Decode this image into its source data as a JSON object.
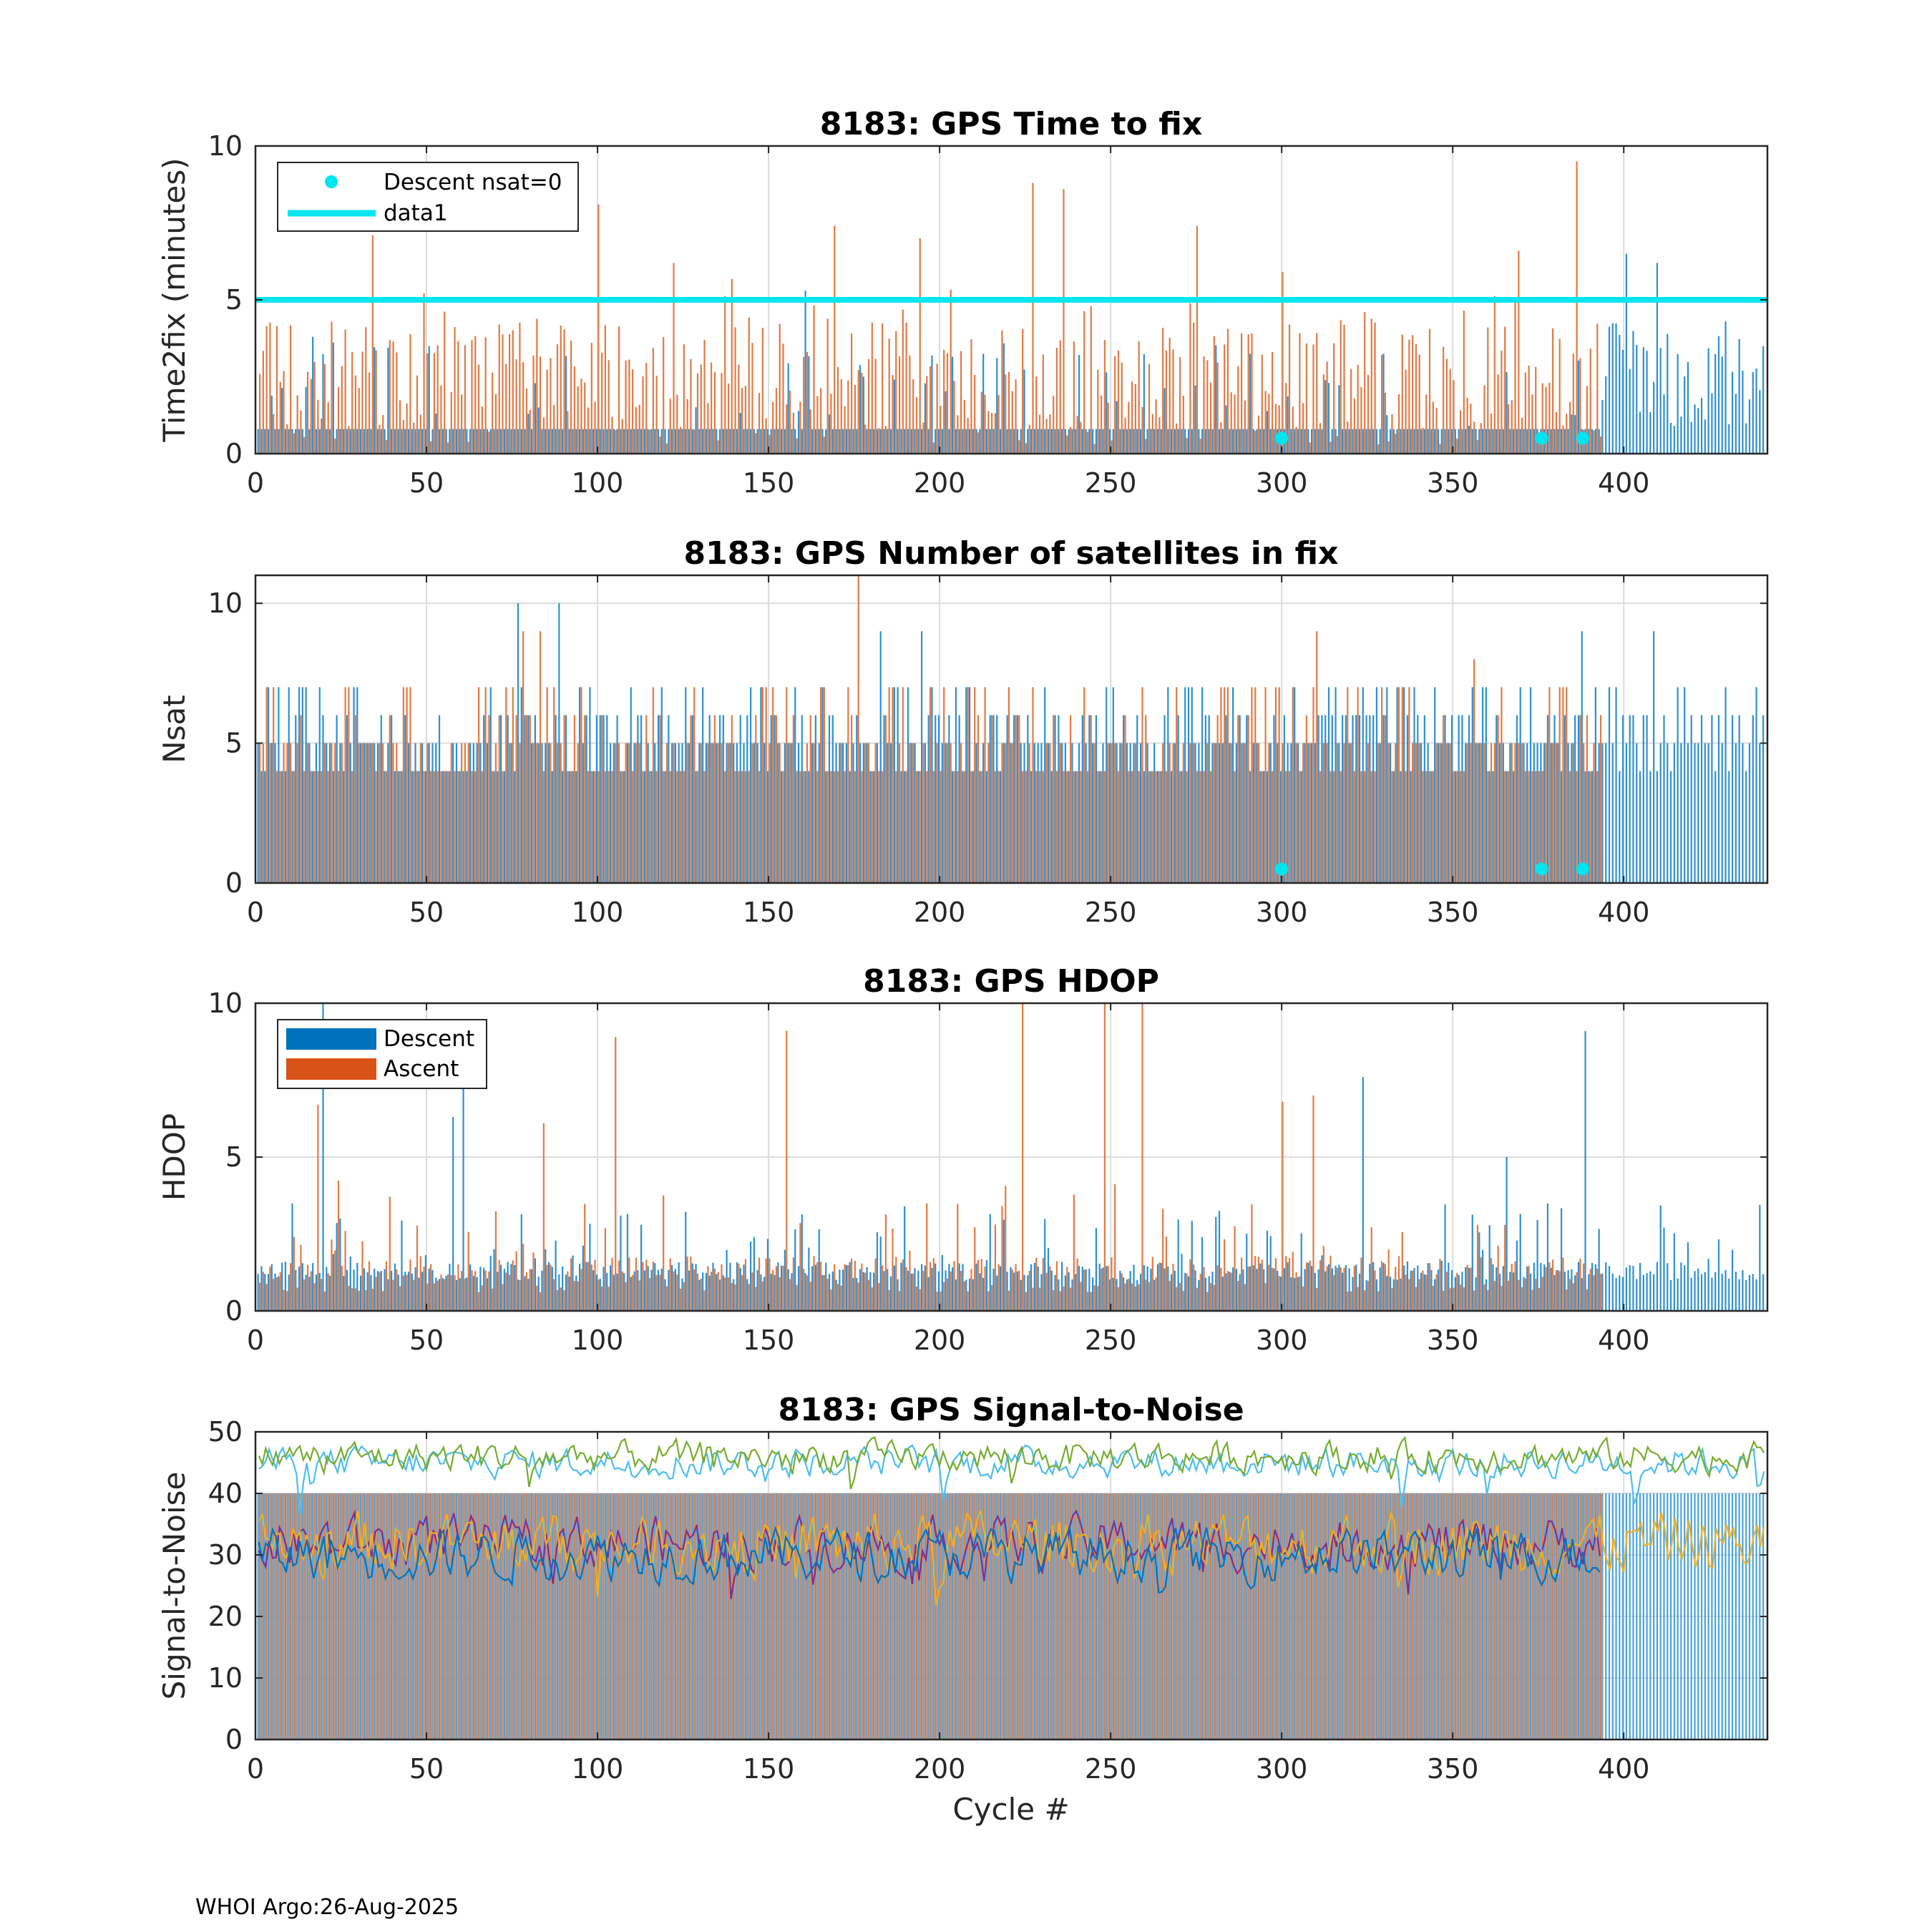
{
  "footer": "WHOI Argo:26-Aug-2025",
  "colors": {
    "descent": "#0072bd",
    "ascent": "#d95319",
    "threshold": "#00e5ee",
    "nsat0": "#00e5ee",
    "snr_series": [
      "#4dbeee",
      "#77ac30",
      "#7e2f8e",
      "#edb120",
      "#0072bd"
    ]
  },
  "chart_data": [
    {
      "id": "ttf",
      "type": "bar",
      "title": "8183: GPS Time to fix",
      "xlabel": "",
      "ylabel": "Time2fix (minutes)",
      "xlim": [
        0,
        442
      ],
      "ylim": [
        0,
        10
      ],
      "xticks": [
        0,
        50,
        100,
        150,
        200,
        250,
        300,
        350,
        400
      ],
      "yticks": [
        0,
        5,
        10
      ],
      "grid": true,
      "legend": {
        "position": "top-left",
        "entries": [
          "Descent nsat=0",
          "data1"
        ]
      },
      "threshold": {
        "name": "data1",
        "value": 5
      },
      "nsat0_points": {
        "name": "Descent nsat=0",
        "x": [
          300,
          376,
          388
        ],
        "y": [
          0.5,
          0.5,
          0.5
        ]
      },
      "ascent_peaks": [
        [
          34,
          7.1
        ],
        [
          100,
          8.1
        ],
        [
          122,
          6.2
        ],
        [
          169,
          7.4
        ],
        [
          194,
          7.0
        ],
        [
          227,
          8.8
        ],
        [
          236,
          8.6
        ],
        [
          275,
          7.4
        ],
        [
          300,
          5.9
        ],
        [
          369,
          6.6
        ],
        [
          386,
          9.5
        ]
      ],
      "descent_peaks": [
        [
          161,
          5.3
        ],
        [
          401,
          6.5
        ],
        [
          410,
          6.2
        ],
        [
          430,
          4.3
        ]
      ],
      "series": [
        {
          "name": "Descent",
          "x_range": [
            1,
            441
          ],
          "typical": 0.8,
          "spread": 3.0
        },
        {
          "name": "Ascent",
          "x_range": [
            1,
            393
          ],
          "typical": 2.5,
          "spread": 4.0
        }
      ]
    },
    {
      "id": "nsat",
      "type": "bar",
      "title": "8183: GPS Number of satellites in fix",
      "xlabel": "",
      "ylabel": "Nsat",
      "xlim": [
        0,
        442
      ],
      "ylim": [
        0,
        11
      ],
      "xticks": [
        0,
        50,
        100,
        150,
        200,
        250,
        300,
        350,
        400
      ],
      "yticks": [
        0,
        5,
        10
      ],
      "grid": true,
      "nsat0_points": {
        "name": "Descent nsat=0",
        "x": [
          300,
          376,
          388
        ],
        "y": [
          0.5,
          0.5,
          0.5
        ]
      },
      "ascent_peaks": [
        [
          78,
          9
        ],
        [
          83,
          9
        ],
        [
          176,
          11
        ],
        [
          310,
          9
        ],
        [
          356,
          8
        ]
      ],
      "descent_peaks": [
        [
          77,
          10
        ],
        [
          89,
          10
        ],
        [
          183,
          9
        ],
        [
          195,
          9
        ],
        [
          388,
          9
        ],
        [
          409,
          9
        ]
      ],
      "series": [
        {
          "name": "Descent",
          "x_range": [
            1,
            441
          ],
          "typical": 5,
          "spread": 3
        },
        {
          "name": "Ascent",
          "x_range": [
            1,
            393
          ],
          "typical": 5,
          "spread": 3
        }
      ]
    },
    {
      "id": "hdop",
      "type": "bar",
      "title": "8183: GPS HDOP",
      "xlabel": "",
      "ylabel": "HDOP",
      "xlim": [
        0,
        442
      ],
      "ylim": [
        0,
        10
      ],
      "xticks": [
        0,
        50,
        100,
        150,
        200,
        250,
        300,
        350,
        400
      ],
      "yticks": [
        0,
        5,
        10
      ],
      "grid": true,
      "legend": {
        "position": "top-left",
        "entries": [
          "Descent",
          "Ascent"
        ]
      },
      "ascent_peaks": [
        [
          18,
          6.7
        ],
        [
          84,
          6.1
        ],
        [
          105,
          8.9
        ],
        [
          155,
          9.1
        ],
        [
          224,
          10
        ],
        [
          248,
          10
        ],
        [
          259,
          10
        ],
        [
          300,
          6.8
        ],
        [
          309,
          7.0
        ]
      ],
      "descent_peaks": [
        [
          20,
          10
        ],
        [
          58,
          6.3
        ],
        [
          61,
          7.3
        ],
        [
          324,
          7.6
        ],
        [
          366,
          5.0
        ],
        [
          389,
          9.1
        ]
      ],
      "series": [
        {
          "name": "Descent",
          "x_range": [
            1,
            441
          ],
          "typical": 1.0,
          "spread": 2.5
        },
        {
          "name": "Ascent",
          "x_range": [
            1,
            393
          ],
          "typical": 1.2,
          "spread": 2.5
        }
      ]
    },
    {
      "id": "snr",
      "type": "line",
      "title": "8183: GPS Signal-to-Noise",
      "xlabel": "Cycle #",
      "ylabel": "Signal-to-Noise",
      "xlim": [
        0,
        442
      ],
      "ylim": [
        0,
        50
      ],
      "xticks": [
        0,
        50,
        100,
        150,
        200,
        250,
        300,
        350,
        400
      ],
      "yticks": [
        0,
        10,
        20,
        30,
        40,
        50
      ],
      "grid": true,
      "series": [
        {
          "name": "SNR 1",
          "color_index": 0,
          "mean": 45,
          "amplitude": 3.5,
          "x_range": [
            1,
            441
          ]
        },
        {
          "name": "SNR 2",
          "color_index": 1,
          "mean": 46,
          "amplitude": 3.5,
          "x_range": [
            1,
            441
          ]
        },
        {
          "name": "SNR 3",
          "color_index": 2,
          "mean": 32,
          "amplitude": 6,
          "x_range": [
            1,
            393
          ]
        },
        {
          "name": "SNR 4",
          "color_index": 3,
          "mean": 32,
          "amplitude": 7,
          "x_range": [
            1,
            441
          ]
        },
        {
          "name": "SNR 5",
          "color_index": 4,
          "mean": 30,
          "amplitude": 6,
          "x_range": [
            1,
            393
          ]
        }
      ],
      "bars": [
        {
          "name": "Descent",
          "value": 40,
          "x_range": [
            1,
            441
          ]
        },
        {
          "name": "Ascent",
          "value": 40,
          "x_range": [
            1,
            393
          ]
        }
      ]
    }
  ]
}
